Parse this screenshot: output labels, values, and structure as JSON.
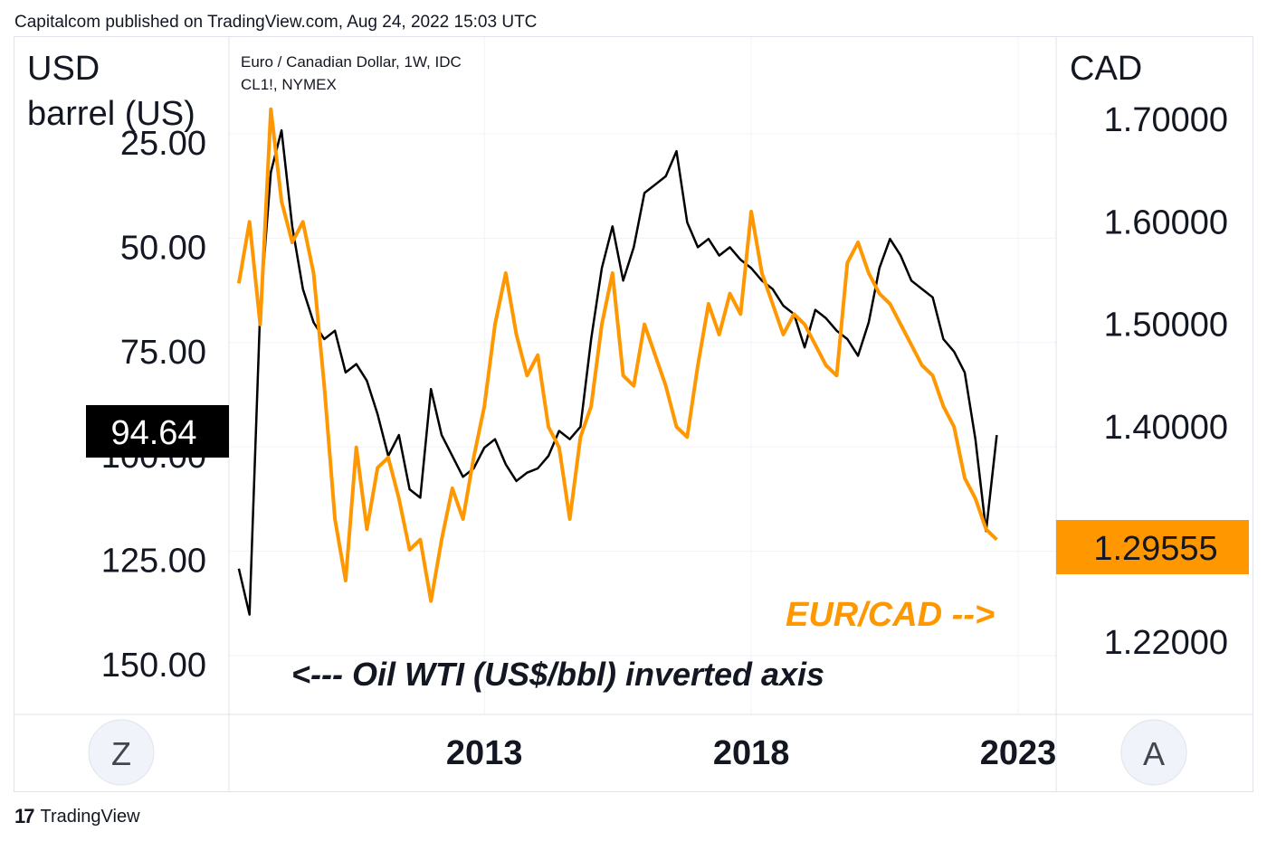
{
  "header": {
    "published": "Capitalcom published on TradingView.com, Aug 24, 2022 15:03 UTC"
  },
  "legend": {
    "line1": "Euro / Canadian Dollar, 1W, IDC",
    "line2": "CL1!, NYMEX"
  },
  "left_axis": {
    "unit_line1": "USD",
    "unit_line2": "barrel (US)",
    "ticks": [
      "25.00",
      "50.00",
      "75.00",
      "100.00",
      "125.00",
      "150.00"
    ],
    "current_label": "94.64"
  },
  "right_axis": {
    "unit": "CAD",
    "ticks": [
      "1.70000",
      "1.60000",
      "1.50000",
      "1.40000",
      "1.22000"
    ],
    "current_label": "1.29555"
  },
  "x_axis": {
    "ticks": [
      "2013",
      "2018",
      "2023"
    ]
  },
  "annotations": {
    "oil_note": "<--- Oil WTI (US$/bbl) inverted axis",
    "eurcad_note": "EUR/CAD -->"
  },
  "scale_buttons": {
    "left": "Z",
    "right": "A"
  },
  "footer": {
    "brand": "TradingView",
    "logo_glyph": "17"
  },
  "colors": {
    "eurcad": "#ff9800",
    "oil": "#000000",
    "grid": "#f0f3fa",
    "axis_border": "#e0e3eb"
  },
  "chart_data": {
    "type": "line",
    "x_axis_ticks": [
      "2013",
      "2018",
      "2023"
    ],
    "series": [
      {
        "name": "CL1!, NYMEX",
        "axis": "left",
        "inverted": true,
        "unit": "USD / barrel (US)",
        "x": [
          2008.4,
          2008.6,
          2008.8,
          2009.0,
          2009.2,
          2009.4,
          2009.6,
          2009.8,
          2010.0,
          2010.2,
          2010.4,
          2010.6,
          2010.8,
          2011.0,
          2011.2,
          2011.4,
          2011.6,
          2011.8,
          2012.0,
          2012.2,
          2012.4,
          2012.6,
          2012.8,
          2013.0,
          2013.2,
          2013.4,
          2013.6,
          2013.8,
          2014.0,
          2014.2,
          2014.4,
          2014.6,
          2014.8,
          2015.0,
          2015.2,
          2015.4,
          2015.6,
          2015.8,
          2016.0,
          2016.2,
          2016.4,
          2016.6,
          2016.8,
          2017.0,
          2017.2,
          2017.4,
          2017.6,
          2017.8,
          2018.0,
          2018.2,
          2018.4,
          2018.6,
          2018.8,
          2019.0,
          2019.2,
          2019.4,
          2019.6,
          2019.8,
          2020.0,
          2020.2,
          2020.4,
          2020.6,
          2020.8,
          2021.0,
          2021.2,
          2021.4,
          2021.6,
          2021.8,
          2022.0,
          2022.2,
          2022.4,
          2022.6
        ],
        "values": [
          127,
          138,
          65,
          32,
          22,
          45,
          60,
          68,
          72,
          70,
          80,
          78,
          82,
          90,
          100,
          95,
          108,
          110,
          84,
          95,
          100,
          105,
          103,
          98,
          96,
          102,
          106,
          104,
          103,
          100,
          94,
          96,
          93,
          72,
          55,
          45,
          58,
          50,
          37,
          35,
          33,
          27,
          44,
          50,
          48,
          52,
          50,
          53,
          55,
          58,
          60,
          64,
          66,
          74,
          65,
          67,
          70,
          72,
          76,
          68,
          55,
          48,
          52,
          58,
          60,
          62,
          72,
          75,
          80,
          96,
          118,
          95
        ]
      },
      {
        "name": "Euro / Canadian Dollar, 1W, IDC",
        "axis": "right",
        "unit": "CAD",
        "x": [
          2008.4,
          2008.6,
          2008.8,
          2009.0,
          2009.2,
          2009.4,
          2009.6,
          2009.8,
          2010.0,
          2010.2,
          2010.4,
          2010.6,
          2010.8,
          2011.0,
          2011.2,
          2011.4,
          2011.6,
          2011.8,
          2012.0,
          2012.2,
          2012.4,
          2012.6,
          2012.8,
          2013.0,
          2013.2,
          2013.4,
          2013.6,
          2013.8,
          2014.0,
          2014.2,
          2014.4,
          2014.6,
          2014.8,
          2015.0,
          2015.2,
          2015.4,
          2015.6,
          2015.8,
          2016.0,
          2016.2,
          2016.4,
          2016.6,
          2016.8,
          2017.0,
          2017.2,
          2017.4,
          2017.6,
          2017.8,
          2018.0,
          2018.2,
          2018.4,
          2018.6,
          2018.8,
          2019.0,
          2019.2,
          2019.4,
          2019.6,
          2019.8,
          2020.0,
          2020.2,
          2020.4,
          2020.6,
          2020.8,
          2021.0,
          2021.2,
          2021.4,
          2021.6,
          2021.8,
          2022.0,
          2022.2,
          2022.4,
          2022.6
        ],
        "values": [
          1.54,
          1.6,
          1.5,
          1.71,
          1.62,
          1.58,
          1.6,
          1.55,
          1.44,
          1.31,
          1.25,
          1.38,
          1.3,
          1.36,
          1.37,
          1.33,
          1.28,
          1.29,
          1.23,
          1.29,
          1.34,
          1.31,
          1.37,
          1.42,
          1.5,
          1.55,
          1.49,
          1.45,
          1.47,
          1.4,
          1.38,
          1.31,
          1.39,
          1.42,
          1.5,
          1.55,
          1.45,
          1.44,
          1.5,
          1.47,
          1.44,
          1.4,
          1.39,
          1.46,
          1.52,
          1.49,
          1.53,
          1.51,
          1.61,
          1.55,
          1.52,
          1.49,
          1.51,
          1.5,
          1.48,
          1.46,
          1.45,
          1.56,
          1.58,
          1.55,
          1.53,
          1.52,
          1.5,
          1.48,
          1.46,
          1.45,
          1.42,
          1.4,
          1.35,
          1.33,
          1.3,
          1.29
        ]
      }
    ],
    "left_axis": {
      "ticks": [
        25,
        50,
        75,
        100,
        125,
        150
      ],
      "range": [
        -5,
        165
      ],
      "inverted": true
    },
    "right_axis": {
      "ticks": [
        1.7,
        1.6,
        1.5,
        1.4,
        1.22
      ],
      "range": [
        1.16,
        1.77
      ]
    },
    "x_range": [
      2008.3,
      2023.0
    ],
    "grid": true,
    "current_values": {
      "oil": 94.64,
      "eurcad": 1.29555
    }
  }
}
